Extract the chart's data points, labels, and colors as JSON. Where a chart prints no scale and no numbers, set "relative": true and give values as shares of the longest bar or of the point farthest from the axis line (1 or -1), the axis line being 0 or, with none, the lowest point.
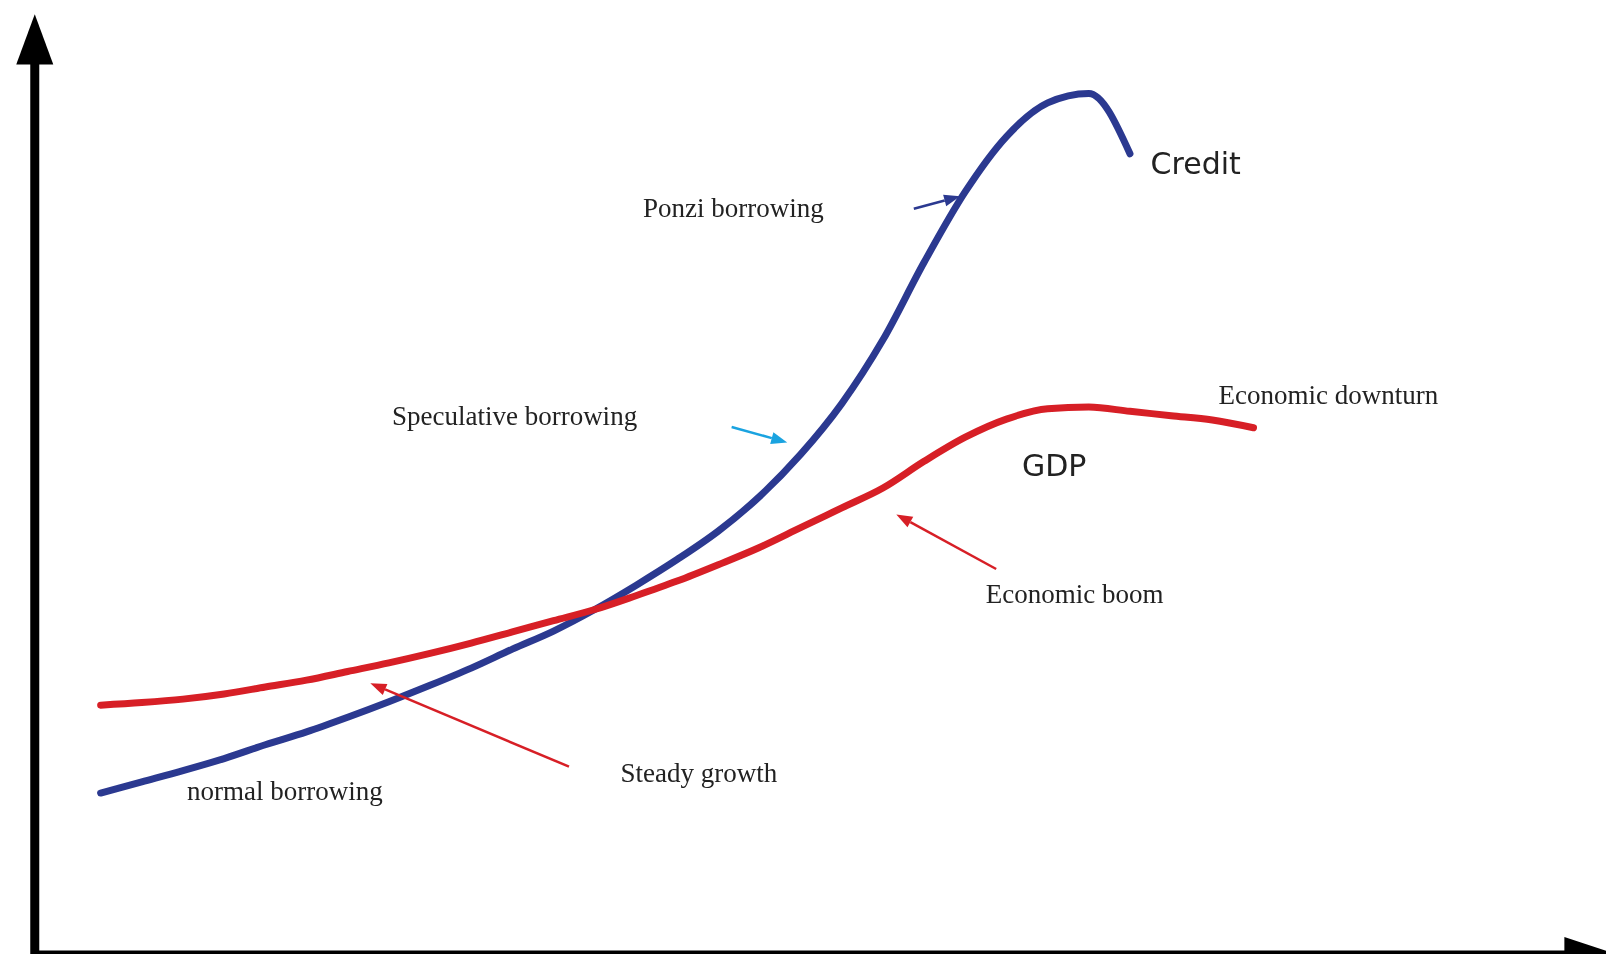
{
  "chart_data": {
    "type": "line",
    "relative": true,
    "marker": "none",
    "line_style": "solid",
    "categories": [
      null,
      null,
      null,
      null,
      null,
      null,
      null,
      null,
      null,
      null,
      null,
      null,
      null,
      null,
      null,
      null,
      null,
      null,
      null,
      null,
      null,
      null,
      null,
      null,
      null,
      null,
      null,
      null,
      null
    ],
    "series": [
      {
        "name": "Credit",
        "color": "#2b3990",
        "values": [
          0.188,
          0.201,
          0.214,
          0.228,
          0.244,
          0.259,
          0.276,
          0.294,
          0.313,
          0.333,
          0.355,
          0.376,
          0.401,
          0.429,
          0.459,
          0.492,
          0.532,
          0.581,
          0.64,
          0.714,
          0.804,
          0.886,
          0.95,
          0.989,
          1.0,
          0.93,
          null,
          null,
          null
        ]
      },
      {
        "name": "GDP",
        "color": "#d71f26",
        "values": [
          0.29,
          0.293,
          0.297,
          0.303,
          0.311,
          0.319,
          0.329,
          0.339,
          0.35,
          0.362,
          0.375,
          0.388,
          0.401,
          0.417,
          0.434,
          0.453,
          0.473,
          0.496,
          0.519,
          0.542,
          0.573,
          0.601,
          0.622,
          0.634,
          0.636,
          0.631,
          0.626,
          0.621,
          0.612
        ]
      }
    ],
    "annotations": [
      "Ponzi borrowing",
      "Speculative borrowing",
      "normal borrowing",
      "Steady growth",
      "Economic boom",
      "Economic downturn"
    ]
  }
}
